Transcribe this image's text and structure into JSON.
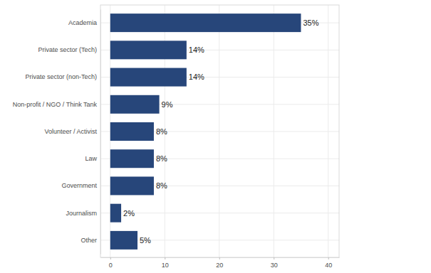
{
  "chart_data": {
    "type": "bar",
    "orientation": "horizontal",
    "categories": [
      "Academia",
      "Private sector (Tech)",
      "Private sector (non-Tech)",
      "Non-profit / NGO / Think Tank",
      "Volunteer / Activist",
      "Law",
      "Government",
      "Journalism",
      "Other"
    ],
    "values": [
      35,
      14,
      14,
      9,
      8,
      8,
      8,
      2,
      5
    ],
    "value_labels": [
      "35%",
      "14%",
      "14%",
      "9%",
      "8%",
      "8%",
      "8%",
      "2%",
      "5%"
    ],
    "data_labels": true,
    "color": "#27467a",
    "xlim": [
      -1.8,
      42
    ],
    "xticks": [
      0,
      10,
      20,
      30,
      40
    ],
    "grid": true
  }
}
